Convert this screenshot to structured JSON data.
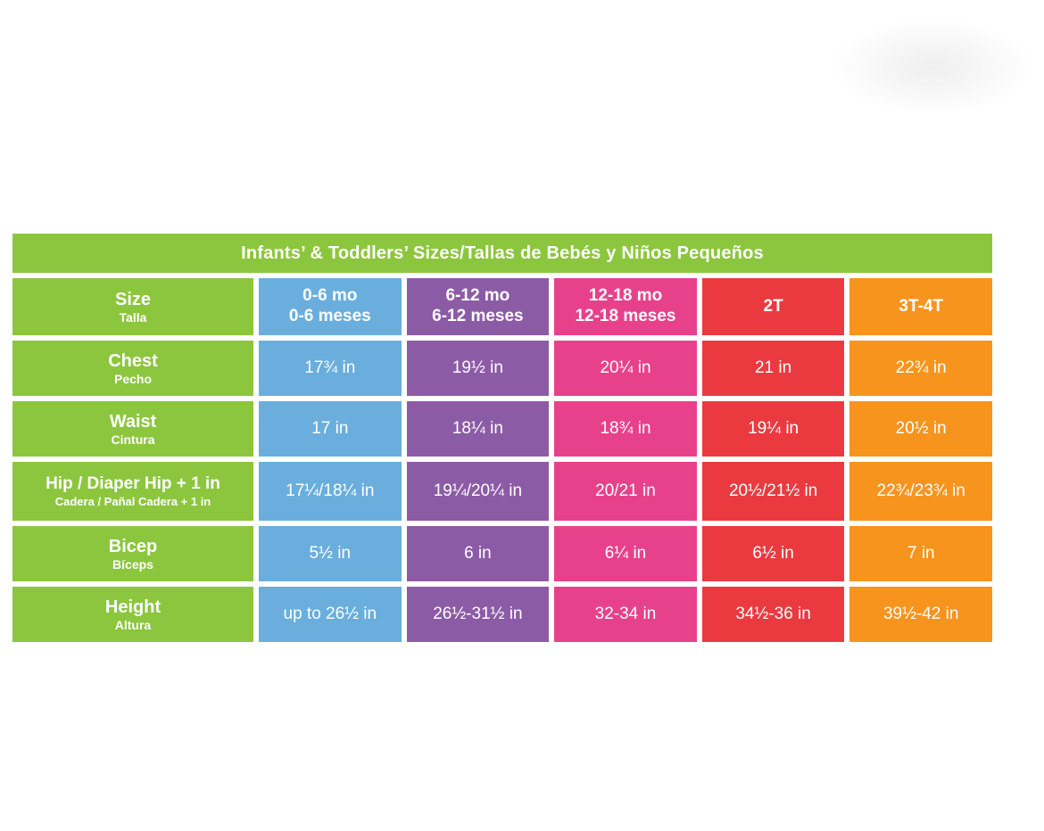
{
  "title": "Infants’ & Toddlers’ Sizes/Tallas de Bebés y Niños Pequeños",
  "corner": {
    "en": "Size",
    "es": "Talla"
  },
  "columns": [
    {
      "en": "0-6 mo",
      "es": "0-6 meses"
    },
    {
      "en": "6-12 mo",
      "es": "6-12 meses"
    },
    {
      "en": "12-18 mo",
      "es": "12-18 meses"
    },
    {
      "en": "2T",
      "es": ""
    },
    {
      "en": "3T-4T",
      "es": ""
    }
  ],
  "rows": [
    {
      "en": "Chest",
      "es": "Pecho",
      "values": [
        "17¾ in",
        "19½ in",
        "20¼ in",
        "21 in",
        "22¾ in"
      ]
    },
    {
      "en": "Waist",
      "es": "Cintura",
      "values": [
        "17 in",
        "18¼ in",
        "18¾ in",
        "19¼ in",
        "20½ in"
      ]
    },
    {
      "en": "Hip / Diaper Hip + 1 in",
      "es": "Cadera / Pañal Cadera + 1 in",
      "values": [
        "17¼/18¼ in",
        "19¼/20¼ in",
        "20/21 in",
        "20½/21½ in",
        "22¾/23¾ in"
      ]
    },
    {
      "en": "Bicep",
      "es": "Bíceps",
      "values": [
        "5½ in",
        "6 in",
        "6¼ in",
        "6½ in",
        "7 in"
      ]
    },
    {
      "en": "Height",
      "es": "Altura",
      "values": [
        "up to 26½ in",
        "26½-31½ in",
        "32-34 in",
        "34½-36 in",
        "39½-42 in"
      ]
    }
  ],
  "colors": {
    "green": "#8cc63e",
    "blue": "#6aaede",
    "purple": "#8c5ba6",
    "pink": "#e8418c",
    "red": "#ea3a40",
    "orange": "#f7941e"
  },
  "chart_data": {
    "type": "table",
    "title": "Infants’ & Toddlers’ Sizes/Tallas de Bebés y Niños Pequeños",
    "column_headers": [
      "Size / Talla",
      "0-6 mo / 0-6 meses",
      "6-12 mo / 6-12 meses",
      "12-18 mo / 12-18 meses",
      "2T",
      "3T-4T"
    ],
    "rows": [
      [
        "Chest / Pecho",
        "17¾ in",
        "19½ in",
        "20¼ in",
        "21 in",
        "22¾ in"
      ],
      [
        "Waist / Cintura",
        "17 in",
        "18¼ in",
        "18¾ in",
        "19¼ in",
        "20½ in"
      ],
      [
        "Hip / Diaper Hip + 1 in / Cadera / Pañal Cadera + 1 in",
        "17¼/18¼ in",
        "19¼/20¼ in",
        "20/21 in",
        "20½/21½ in",
        "22¾/23¾ in"
      ],
      [
        "Bicep / Bíceps",
        "5½ in",
        "6 in",
        "6¼ in",
        "6½ in",
        "7 in"
      ],
      [
        "Height / Altura",
        "up to 26½ in",
        "26½-31½ in",
        "32-34 in",
        "34½-36 in",
        "39½-42 in"
      ]
    ]
  }
}
